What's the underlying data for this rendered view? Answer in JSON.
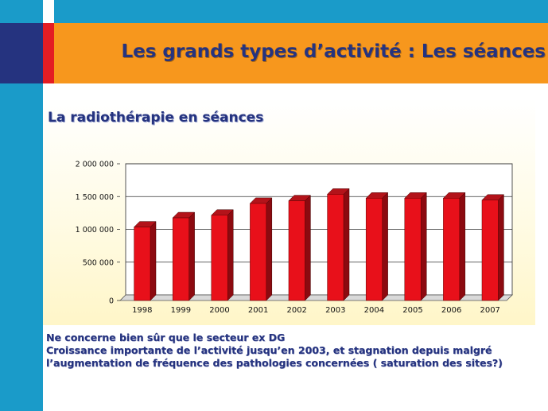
{
  "slide": {
    "title": "Les grands types d’activité : Les séances"
  },
  "chart_data": {
    "type": "bar",
    "title": "La radiothérapie en séances",
    "categories": [
      "1998",
      "1999",
      "2000",
      "2001",
      "2002",
      "2003",
      "2004",
      "2005",
      "2006",
      "2007"
    ],
    "values": [
      1120000,
      1260000,
      1300000,
      1480000,
      1520000,
      1620000,
      1560000,
      1560000,
      1560000,
      1530000
    ],
    "ylim": [
      0,
      2000000
    ],
    "yticks": [
      0,
      500000,
      1000000,
      1500000,
      2000000
    ],
    "ytick_labels": [
      "0",
      "500 000",
      "1 000 000",
      "1 500 000",
      "2 000 000"
    ],
    "grid": true,
    "bar_color": "#e8101a",
    "bar_side_color": "#8c0a10"
  },
  "notes": {
    "line1": "Ne concerne bien sûr que le secteur ex DG",
    "line2": "Croissance importante de l’activité jusqu’en 2003, et stagnation depuis malgré",
    "line3": "l’augmentation de fréquence des pathologies concernées ( saturation des sites?)"
  }
}
